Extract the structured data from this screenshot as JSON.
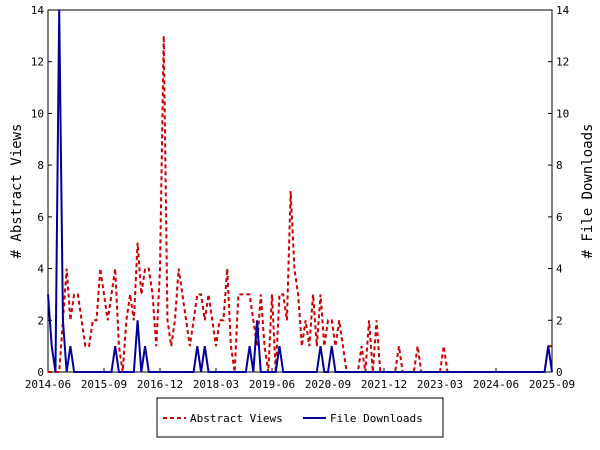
{
  "chart_data": {
    "type": "line",
    "title": "",
    "xlabel": "",
    "ylabel_left": "# Abstract Views",
    "ylabel_right": "# File Downloads",
    "ylim": [
      0,
      14
    ],
    "y_ticks": [
      0,
      2,
      4,
      6,
      8,
      10,
      12,
      14
    ],
    "x_range": [
      "2014-06",
      "2025-09"
    ],
    "x_ticks": [
      "2014-06",
      "2015-09",
      "2016-12",
      "2018-03",
      "2019-06",
      "2020-09",
      "2021-12",
      "2023-03",
      "2024-06",
      "2025-09"
    ],
    "grid": false,
    "legend_position": "bottom",
    "series": [
      {
        "name": "Abstract Views",
        "axis": "left",
        "color": "#cc0000",
        "style": "dashed",
        "points": [
          [
            "2014-06",
            0
          ],
          [
            "2014-07",
            0
          ],
          [
            "2014-08",
            0
          ],
          [
            "2014-09",
            0
          ],
          [
            "2014-10",
            2
          ],
          [
            "2014-11",
            4
          ],
          [
            "2014-12",
            2
          ],
          [
            "2015-01",
            3
          ],
          [
            "2015-02",
            3
          ],
          [
            "2015-03",
            2
          ],
          [
            "2015-04",
            1
          ],
          [
            "2015-05",
            1
          ],
          [
            "2015-06",
            2
          ],
          [
            "2015-07",
            2
          ],
          [
            "2015-08",
            4
          ],
          [
            "2015-09",
            3
          ],
          [
            "2015-10",
            2
          ],
          [
            "2015-11",
            3
          ],
          [
            "2015-12",
            4
          ],
          [
            "2016-01",
            1
          ],
          [
            "2016-02",
            0
          ],
          [
            "2016-03",
            2
          ],
          [
            "2016-04",
            3
          ],
          [
            "2016-05",
            2
          ],
          [
            "2016-06",
            5
          ],
          [
            "2016-07",
            3
          ],
          [
            "2016-08",
            4
          ],
          [
            "2016-09",
            4
          ],
          [
            "2016-10",
            3
          ],
          [
            "2016-11",
            1
          ],
          [
            "2016-12",
            4
          ],
          [
            "2017-01",
            13
          ],
          [
            "2017-02",
            2
          ],
          [
            "2017-03",
            1
          ],
          [
            "2017-04",
            2
          ],
          [
            "2017-05",
            4
          ],
          [
            "2017-06",
            3
          ],
          [
            "2017-07",
            2
          ],
          [
            "2017-08",
            1
          ],
          [
            "2017-09",
            2
          ],
          [
            "2017-10",
            3
          ],
          [
            "2017-11",
            3
          ],
          [
            "2017-12",
            2
          ],
          [
            "2018-01",
            3
          ],
          [
            "2018-02",
            2
          ],
          [
            "2018-03",
            1
          ],
          [
            "2018-04",
            2
          ],
          [
            "2018-05",
            2
          ],
          [
            "2018-06",
            4
          ],
          [
            "2018-07",
            1
          ],
          [
            "2018-08",
            0
          ],
          [
            "2018-09",
            3
          ],
          [
            "2018-10",
            3
          ],
          [
            "2018-11",
            3
          ],
          [
            "2018-12",
            3
          ],
          [
            "2019-01",
            2
          ],
          [
            "2019-02",
            1
          ],
          [
            "2019-03",
            3
          ],
          [
            "2019-04",
            1
          ],
          [
            "2019-05",
            0
          ],
          [
            "2019-06",
            3
          ],
          [
            "2019-07",
            0
          ],
          [
            "2019-08",
            3
          ],
          [
            "2019-09",
            3
          ],
          [
            "2019-10",
            2
          ],
          [
            "2019-11",
            7
          ],
          [
            "2019-12",
            4
          ],
          [
            "2020-01",
            3
          ],
          [
            "2020-02",
            1
          ],
          [
            "2020-03",
            2
          ],
          [
            "2020-04",
            1
          ],
          [
            "2020-05",
            3
          ],
          [
            "2020-06",
            1
          ],
          [
            "2020-07",
            3
          ],
          [
            "2020-08",
            1
          ],
          [
            "2020-09",
            2
          ],
          [
            "2020-10",
            2
          ],
          [
            "2020-11",
            1
          ],
          [
            "2020-12",
            2
          ],
          [
            "2021-01",
            1
          ],
          [
            "2021-02",
            0
          ],
          [
            "2021-03",
            0
          ],
          [
            "2021-04",
            0
          ],
          [
            "2021-05",
            0
          ],
          [
            "2021-06",
            1
          ],
          [
            "2021-07",
            0
          ],
          [
            "2021-08",
            2
          ],
          [
            "2021-09",
            0
          ],
          [
            "2021-10",
            2
          ],
          [
            "2021-11",
            0
          ],
          [
            "2021-12",
            0
          ],
          [
            "2022-01",
            0
          ],
          [
            "2022-02",
            0
          ],
          [
            "2022-03",
            0
          ],
          [
            "2022-04",
            1
          ],
          [
            "2022-05",
            0
          ],
          [
            "2022-06",
            0
          ],
          [
            "2022-07",
            0
          ],
          [
            "2022-08",
            0
          ],
          [
            "2022-09",
            1
          ],
          [
            "2022-10",
            0
          ],
          [
            "2022-11",
            0
          ],
          [
            "2022-12",
            0
          ],
          [
            "2023-01",
            0
          ],
          [
            "2023-02",
            0
          ],
          [
            "2023-03",
            0
          ],
          [
            "2023-04",
            1
          ],
          [
            "2023-05",
            0
          ],
          [
            "2023-06",
            0
          ],
          [
            "2023-07",
            0
          ],
          [
            "2023-08",
            0
          ],
          [
            "2023-09",
            0
          ],
          [
            "2023-10",
            0
          ],
          [
            "2023-11",
            0
          ],
          [
            "2023-12",
            0
          ],
          [
            "2024-01",
            0
          ],
          [
            "2024-02",
            0
          ],
          [
            "2024-03",
            0
          ],
          [
            "2024-04",
            0
          ],
          [
            "2024-05",
            0
          ],
          [
            "2024-06",
            0
          ],
          [
            "2024-07",
            0
          ],
          [
            "2024-08",
            0
          ],
          [
            "2024-09",
            0
          ],
          [
            "2024-10",
            0
          ],
          [
            "2024-11",
            0
          ],
          [
            "2024-12",
            0
          ],
          [
            "2025-01",
            0
          ],
          [
            "2025-02",
            0
          ],
          [
            "2025-03",
            0
          ],
          [
            "2025-04",
            0
          ],
          [
            "2025-05",
            0
          ],
          [
            "2025-06",
            0
          ],
          [
            "2025-07",
            0
          ],
          [
            "2025-08",
            1
          ],
          [
            "2025-09",
            1
          ]
        ]
      },
      {
        "name": "File Downloads",
        "axis": "right",
        "color": "#000099",
        "style": "solid",
        "points": [
          [
            "2014-06",
            3
          ],
          [
            "2014-07",
            1
          ],
          [
            "2014-08",
            0
          ],
          [
            "2014-09",
            14
          ],
          [
            "2014-10",
            2
          ],
          [
            "2014-11",
            0
          ],
          [
            "2014-12",
            1
          ],
          [
            "2015-01",
            0
          ],
          [
            "2015-02",
            0
          ],
          [
            "2015-03",
            0
          ],
          [
            "2015-04",
            0
          ],
          [
            "2015-05",
            0
          ],
          [
            "2015-06",
            0
          ],
          [
            "2015-07",
            0
          ],
          [
            "2015-08",
            0
          ],
          [
            "2015-09",
            0
          ],
          [
            "2015-10",
            0
          ],
          [
            "2015-11",
            0
          ],
          [
            "2015-12",
            1
          ],
          [
            "2016-01",
            0
          ],
          [
            "2016-02",
            0
          ],
          [
            "2016-03",
            0
          ],
          [
            "2016-04",
            0
          ],
          [
            "2016-05",
            0
          ],
          [
            "2016-06",
            2
          ],
          [
            "2016-07",
            0
          ],
          [
            "2016-08",
            1
          ],
          [
            "2016-09",
            0
          ],
          [
            "2016-10",
            0
          ],
          [
            "2016-11",
            0
          ],
          [
            "2016-12",
            0
          ],
          [
            "2017-01",
            0
          ],
          [
            "2017-02",
            0
          ],
          [
            "2017-03",
            0
          ],
          [
            "2017-04",
            0
          ],
          [
            "2017-05",
            0
          ],
          [
            "2017-06",
            0
          ],
          [
            "2017-07",
            0
          ],
          [
            "2017-08",
            0
          ],
          [
            "2017-09",
            0
          ],
          [
            "2017-10",
            1
          ],
          [
            "2017-11",
            0
          ],
          [
            "2017-12",
            1
          ],
          [
            "2018-01",
            0
          ],
          [
            "2018-02",
            0
          ],
          [
            "2018-03",
            0
          ],
          [
            "2018-04",
            0
          ],
          [
            "2018-05",
            0
          ],
          [
            "2018-06",
            0
          ],
          [
            "2018-07",
            0
          ],
          [
            "2018-08",
            0
          ],
          [
            "2018-09",
            0
          ],
          [
            "2018-10",
            0
          ],
          [
            "2018-11",
            0
          ],
          [
            "2018-12",
            1
          ],
          [
            "2019-01",
            0
          ],
          [
            "2019-02",
            2
          ],
          [
            "2019-03",
            0
          ],
          [
            "2019-04",
            0
          ],
          [
            "2019-05",
            0
          ],
          [
            "2019-06",
            0
          ],
          [
            "2019-07",
            0
          ],
          [
            "2019-08",
            1
          ],
          [
            "2019-09",
            0
          ],
          [
            "2019-10",
            0
          ],
          [
            "2019-11",
            0
          ],
          [
            "2019-12",
            0
          ],
          [
            "2020-01",
            0
          ],
          [
            "2020-02",
            0
          ],
          [
            "2020-03",
            0
          ],
          [
            "2020-04",
            0
          ],
          [
            "2020-05",
            0
          ],
          [
            "2020-06",
            0
          ],
          [
            "2020-07",
            1
          ],
          [
            "2020-08",
            0
          ],
          [
            "2020-09",
            0
          ],
          [
            "2020-10",
            1
          ],
          [
            "2020-11",
            0
          ],
          [
            "2020-12",
            0
          ],
          [
            "2021-01",
            0
          ],
          [
            "2021-02",
            0
          ],
          [
            "2021-03",
            0
          ],
          [
            "2021-04",
            0
          ],
          [
            "2021-05",
            0
          ],
          [
            "2021-06",
            0
          ],
          [
            "2021-07",
            0
          ],
          [
            "2021-08",
            0
          ],
          [
            "2021-09",
            0
          ],
          [
            "2021-10",
            0
          ],
          [
            "2021-11",
            0
          ],
          [
            "2021-12",
            0
          ],
          [
            "2022-01",
            0
          ],
          [
            "2022-02",
            0
          ],
          [
            "2022-03",
            0
          ],
          [
            "2022-04",
            0
          ],
          [
            "2022-05",
            0
          ],
          [
            "2022-06",
            0
          ],
          [
            "2022-07",
            0
          ],
          [
            "2022-08",
            0
          ],
          [
            "2022-09",
            0
          ],
          [
            "2022-10",
            0
          ],
          [
            "2022-11",
            0
          ],
          [
            "2022-12",
            0
          ],
          [
            "2023-01",
            0
          ],
          [
            "2023-02",
            0
          ],
          [
            "2023-03",
            0
          ],
          [
            "2023-04",
            0
          ],
          [
            "2023-05",
            0
          ],
          [
            "2023-06",
            0
          ],
          [
            "2023-07",
            0
          ],
          [
            "2023-08",
            0
          ],
          [
            "2023-09",
            0
          ],
          [
            "2023-10",
            0
          ],
          [
            "2023-11",
            0
          ],
          [
            "2023-12",
            0
          ],
          [
            "2024-01",
            0
          ],
          [
            "2024-02",
            0
          ],
          [
            "2024-03",
            0
          ],
          [
            "2024-04",
            0
          ],
          [
            "2024-05",
            0
          ],
          [
            "2024-06",
            0
          ],
          [
            "2024-07",
            0
          ],
          [
            "2024-08",
            0
          ],
          [
            "2024-09",
            0
          ],
          [
            "2024-10",
            0
          ],
          [
            "2024-11",
            0
          ],
          [
            "2024-12",
            0
          ],
          [
            "2025-01",
            0
          ],
          [
            "2025-02",
            0
          ],
          [
            "2025-03",
            0
          ],
          [
            "2025-04",
            0
          ],
          [
            "2025-05",
            0
          ],
          [
            "2025-06",
            0
          ],
          [
            "2025-07",
            0
          ],
          [
            "2025-08",
            1
          ],
          [
            "2025-09",
            0
          ]
        ]
      }
    ]
  }
}
